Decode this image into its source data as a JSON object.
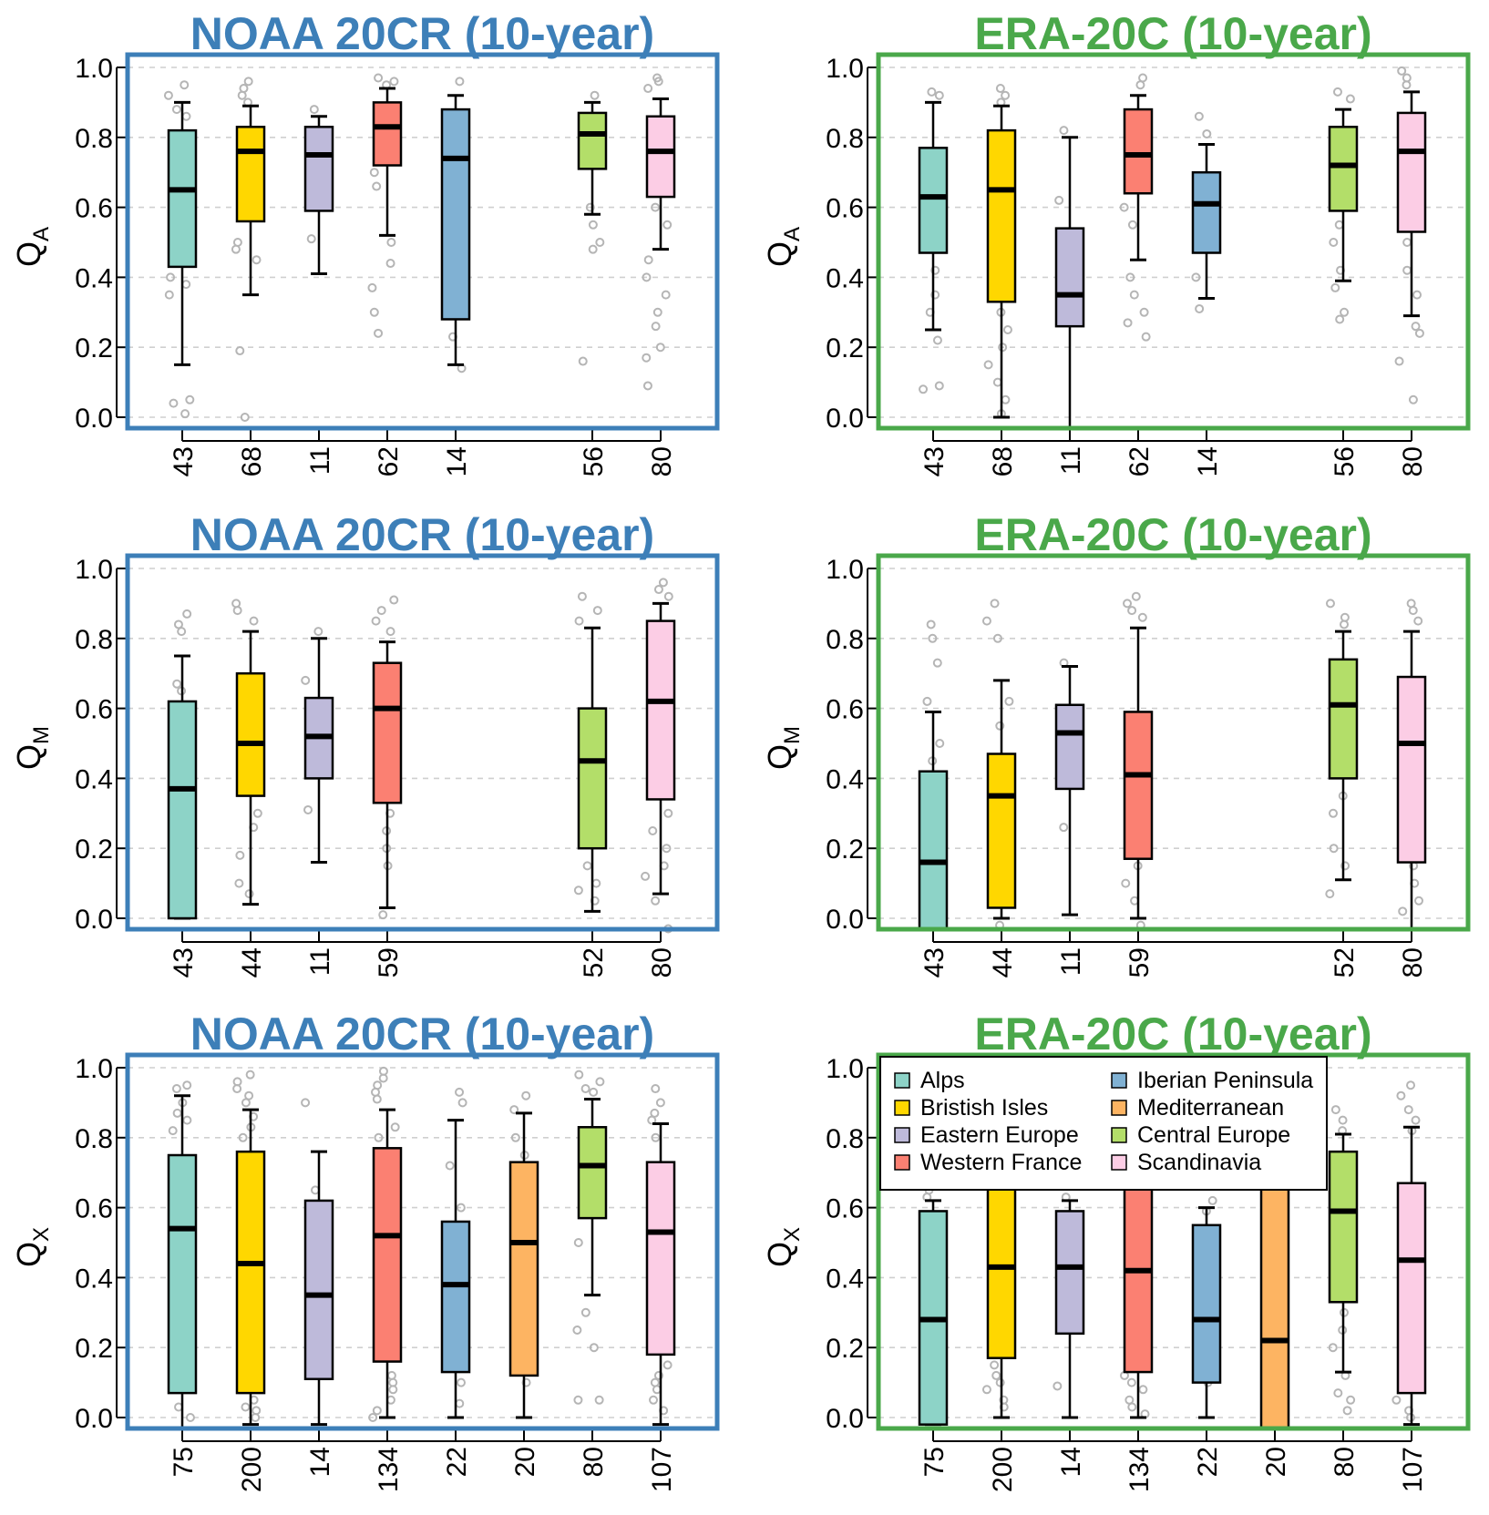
{
  "colors": {
    "noaa": "#3d7fb8",
    "era": "#4aa84a",
    "regions": {
      "Alps": "#8dd3c7",
      "Bristish Isles": "#ffd700",
      "Eastern Europe": "#bebada",
      "Western France": "#fb8072",
      "Iberian Peninsula": "#80b1d3",
      "Mediterranean": "#fdb462",
      "Central Europe": "#b3de69",
      "Scandinavia": "#fccde5"
    },
    "outlier": "#b5b5b5"
  },
  "legend": {
    "entries": [
      "Alps",
      "Bristish Isles",
      "Eastern Europe",
      "Western France",
      "Iberian Peninsula",
      "Mediterranean",
      "Central Europe",
      "Scandinavia"
    ],
    "placement": "top-left of bottom-right panel"
  },
  "chart_data": [
    {
      "type": "boxplot",
      "title": "NOAA 20CR (10-year)",
      "ylabel": "Q",
      "ylabel_sub": "A",
      "ylim": [
        0,
        1
      ],
      "yticks": [
        "0.0",
        "0.2",
        "0.4",
        "0.6",
        "0.8",
        "1.0"
      ],
      "grid": true,
      "series": [
        {
          "category": "43",
          "region": "Alps",
          "q1": 0.43,
          "median": 0.65,
          "q3": 0.82,
          "whisker_low": 0.15,
          "whisker_high": 0.9,
          "outliers": [
            0.95,
            0.92,
            0.88,
            0.86,
            0.4,
            0.38,
            0.35,
            0.05,
            0.04,
            0.01
          ]
        },
        {
          "category": "68",
          "region": "Bristish Isles",
          "q1": 0.56,
          "median": 0.76,
          "q3": 0.83,
          "whisker_low": 0.35,
          "whisker_high": 0.89,
          "outliers": [
            0.96,
            0.94,
            0.92,
            0.9,
            0.5,
            0.48,
            0.45,
            0.19,
            0.0
          ]
        },
        {
          "category": "11",
          "region": "Eastern Europe",
          "q1": 0.59,
          "median": 0.75,
          "q3": 0.83,
          "whisker_low": 0.41,
          "whisker_high": 0.86,
          "outliers": [
            0.88,
            0.51
          ]
        },
        {
          "category": "62",
          "region": "Western France",
          "q1": 0.72,
          "median": 0.83,
          "q3": 0.9,
          "whisker_low": 0.52,
          "whisker_high": 0.94,
          "outliers": [
            0.97,
            0.96,
            0.95,
            0.7,
            0.66,
            0.5,
            0.44,
            0.37,
            0.3,
            0.24
          ]
        },
        {
          "category": "14",
          "region": "Iberian Peninsula",
          "q1": 0.28,
          "median": 0.74,
          "q3": 0.88,
          "whisker_low": 0.15,
          "whisker_high": 0.92,
          "outliers": [
            0.96,
            0.23,
            0.14
          ]
        },
        {
          "category": "56",
          "region": "Central Europe",
          "q1": 0.71,
          "median": 0.81,
          "q3": 0.87,
          "whisker_low": 0.58,
          "whisker_high": 0.9,
          "outliers": [
            0.92,
            0.6,
            0.55,
            0.5,
            0.48,
            0.16
          ]
        },
        {
          "category": "80",
          "region": "Scandinavia",
          "q1": 0.63,
          "median": 0.76,
          "q3": 0.86,
          "whisker_low": 0.48,
          "whisker_high": 0.91,
          "outliers": [
            0.97,
            0.96,
            0.94,
            0.6,
            0.55,
            0.45,
            0.4,
            0.35,
            0.3,
            0.26,
            0.2,
            0.17,
            0.09
          ]
        }
      ]
    },
    {
      "type": "boxplot",
      "title": "ERA-20C (10-year)",
      "ylabel": "Q",
      "ylabel_sub": "A",
      "ylim": [
        0,
        1
      ],
      "yticks": [
        "0.0",
        "0.2",
        "0.4",
        "0.6",
        "0.8",
        "1.0"
      ],
      "grid": true,
      "series": [
        {
          "category": "43",
          "region": "Alps",
          "q1": 0.47,
          "median": 0.63,
          "q3": 0.77,
          "whisker_low": 0.25,
          "whisker_high": 0.9,
          "outliers": [
            0.93,
            0.92,
            0.42,
            0.35,
            0.3,
            0.22,
            0.09,
            0.08
          ]
        },
        {
          "category": "68",
          "region": "Bristish Isles",
          "q1": 0.33,
          "median": 0.65,
          "q3": 0.82,
          "whisker_low": 0.0,
          "whisker_high": 0.89,
          "outliers": [
            0.94,
            0.92,
            0.9,
            0.3,
            0.25,
            0.2,
            0.15,
            0.1,
            0.05,
            0.01
          ]
        },
        {
          "category": "11",
          "region": "Eastern Europe",
          "q1": 0.26,
          "median": 0.35,
          "q3": 0.54,
          "whisker_low": -0.03,
          "whisker_high": 0.8,
          "outliers": [
            0.82,
            0.62
          ]
        },
        {
          "category": "62",
          "region": "Western France",
          "q1": 0.64,
          "median": 0.75,
          "q3": 0.88,
          "whisker_low": 0.45,
          "whisker_high": 0.92,
          "outliers": [
            0.97,
            0.95,
            0.6,
            0.55,
            0.4,
            0.35,
            0.3,
            0.27,
            0.23
          ]
        },
        {
          "category": "14",
          "region": "Iberian Peninsula",
          "q1": 0.47,
          "median": 0.61,
          "q3": 0.7,
          "whisker_low": 0.34,
          "whisker_high": 0.78,
          "outliers": [
            0.86,
            0.81,
            0.4,
            0.31
          ]
        },
        {
          "category": "56",
          "region": "Central Europe",
          "q1": 0.59,
          "median": 0.72,
          "q3": 0.83,
          "whisker_low": 0.39,
          "whisker_high": 0.88,
          "outliers": [
            0.93,
            0.91,
            0.55,
            0.5,
            0.42,
            0.37,
            0.3,
            0.28
          ]
        },
        {
          "category": "80",
          "region": "Scandinavia",
          "q1": 0.53,
          "median": 0.76,
          "q3": 0.87,
          "whisker_low": 0.29,
          "whisker_high": 0.93,
          "outliers": [
            0.99,
            0.97,
            0.95,
            0.5,
            0.42,
            0.35,
            0.26,
            0.24,
            0.16,
            0.05
          ]
        }
      ]
    },
    {
      "type": "boxplot",
      "title": "NOAA 20CR (10-year)",
      "ylabel": "Q",
      "ylabel_sub": "M",
      "ylim": [
        0,
        1
      ],
      "yticks": [
        "0.0",
        "0.2",
        "0.4",
        "0.6",
        "0.8",
        "1.0"
      ],
      "grid": true,
      "series": [
        {
          "category": "43",
          "region": "Alps",
          "q1": 0.0,
          "median": 0.37,
          "q3": 0.62,
          "whisker_low": 0.0,
          "whisker_high": 0.75,
          "outliers": [
            0.87,
            0.84,
            0.82,
            0.67,
            0.65
          ]
        },
        {
          "category": "44",
          "region": "Bristish Isles",
          "q1": 0.35,
          "median": 0.5,
          "q3": 0.7,
          "whisker_low": 0.04,
          "whisker_high": 0.82,
          "outliers": [
            0.9,
            0.88,
            0.85,
            0.3,
            0.26,
            0.18,
            0.1,
            0.07
          ]
        },
        {
          "category": "11",
          "region": "Eastern Europe",
          "q1": 0.4,
          "median": 0.52,
          "q3": 0.63,
          "whisker_low": 0.16,
          "whisker_high": 0.8,
          "outliers": [
            0.82,
            0.68,
            0.31
          ]
        },
        {
          "category": "59",
          "region": "Western France",
          "q1": 0.33,
          "median": 0.6,
          "q3": 0.73,
          "whisker_low": 0.03,
          "whisker_high": 0.79,
          "outliers": [
            0.91,
            0.88,
            0.85,
            0.82,
            0.3,
            0.25,
            0.2,
            0.15,
            0.01
          ]
        },
        {
          "category": "52",
          "region": "Central Europe",
          "q1": 0.2,
          "median": 0.45,
          "q3": 0.6,
          "whisker_low": 0.02,
          "whisker_high": 0.83,
          "outliers": [
            0.92,
            0.88,
            0.85,
            0.15,
            0.1,
            0.08,
            0.05
          ]
        },
        {
          "category": "80",
          "region": "Scandinavia",
          "q1": 0.34,
          "median": 0.62,
          "q3": 0.85,
          "whisker_low": 0.07,
          "whisker_high": 0.9,
          "outliers": [
            0.96,
            0.94,
            0.92,
            0.3,
            0.25,
            0.2,
            0.15,
            0.12,
            0.05,
            -0.03
          ]
        }
      ]
    },
    {
      "type": "boxplot",
      "title": "ERA-20C (10-year)",
      "ylabel": "Q",
      "ylabel_sub": "M",
      "ylim": [
        0,
        1
      ],
      "yticks": [
        "0.0",
        "0.2",
        "0.4",
        "0.6",
        "0.8",
        "1.0"
      ],
      "grid": true,
      "series": [
        {
          "category": "43",
          "region": "Alps",
          "q1": -0.03,
          "median": 0.16,
          "q3": 0.42,
          "whisker_low": -0.03,
          "whisker_high": 0.59,
          "outliers": [
            0.84,
            0.8,
            0.73,
            0.62,
            0.5,
            0.45
          ]
        },
        {
          "category": "44",
          "region": "Bristish Isles",
          "q1": 0.03,
          "median": 0.35,
          "q3": 0.47,
          "whisker_low": 0.0,
          "whisker_high": 0.68,
          "outliers": [
            0.9,
            0.85,
            0.8,
            0.62,
            0.55,
            -0.02
          ]
        },
        {
          "category": "11",
          "region": "Eastern Europe",
          "q1": 0.37,
          "median": 0.53,
          "q3": 0.61,
          "whisker_low": 0.01,
          "whisker_high": 0.72,
          "outliers": [
            0.73,
            0.26
          ]
        },
        {
          "category": "59",
          "region": "Western France",
          "q1": 0.17,
          "median": 0.41,
          "q3": 0.59,
          "whisker_low": 0.0,
          "whisker_high": 0.83,
          "outliers": [
            0.92,
            0.9,
            0.88,
            0.86,
            0.15,
            0.1,
            0.05,
            -0.02
          ]
        },
        {
          "category": "52",
          "region": "Central Europe",
          "q1": 0.4,
          "median": 0.61,
          "q3": 0.74,
          "whisker_low": 0.11,
          "whisker_high": 0.82,
          "outliers": [
            0.9,
            0.86,
            0.84,
            0.35,
            0.3,
            0.2,
            0.15,
            0.07
          ]
        },
        {
          "category": "80",
          "region": "Scandinavia",
          "q1": 0.16,
          "median": 0.5,
          "q3": 0.69,
          "whisker_low": -0.03,
          "whisker_high": 0.82,
          "outliers": [
            0.9,
            0.88,
            0.85,
            0.15,
            0.1,
            0.05,
            0.02
          ]
        }
      ]
    },
    {
      "type": "boxplot",
      "title": "NOAA 20CR (10-year)",
      "ylabel": "Q",
      "ylabel_sub": "X",
      "ylim": [
        0,
        1
      ],
      "yticks": [
        "0.0",
        "0.2",
        "0.4",
        "0.6",
        "0.8",
        "1.0"
      ],
      "grid": true,
      "series": [
        {
          "category": "75",
          "region": "Alps",
          "q1": 0.07,
          "median": 0.54,
          "q3": 0.75,
          "whisker_low": -0.03,
          "whisker_high": 0.92,
          "outliers": [
            0.95,
            0.94,
            0.9,
            0.87,
            0.85,
            0.82,
            0.03,
            0.0
          ]
        },
        {
          "category": "200",
          "region": "Bristish Isles",
          "q1": 0.07,
          "median": 0.44,
          "q3": 0.76,
          "whisker_low": -0.02,
          "whisker_high": 0.88,
          "outliers": [
            0.98,
            0.96,
            0.94,
            0.92,
            0.9,
            0.86,
            0.83,
            0.8,
            0.05,
            0.03,
            0.02,
            0.0
          ]
        },
        {
          "category": "14",
          "region": "Eastern Europe",
          "q1": 0.11,
          "median": 0.35,
          "q3": 0.62,
          "whisker_low": -0.02,
          "whisker_high": 0.76,
          "outliers": [
            0.9,
            0.65
          ]
        },
        {
          "category": "134",
          "region": "Western France",
          "q1": 0.16,
          "median": 0.52,
          "q3": 0.77,
          "whisker_low": 0.0,
          "whisker_high": 0.88,
          "outliers": [
            0.99,
            0.97,
            0.95,
            0.93,
            0.91,
            0.83,
            0.8,
            0.12,
            0.1,
            0.08,
            0.05,
            0.02,
            0.0
          ]
        },
        {
          "category": "22",
          "region": "Iberian Peninsula",
          "q1": 0.13,
          "median": 0.38,
          "q3": 0.56,
          "whisker_low": 0.0,
          "whisker_high": 0.85,
          "outliers": [
            0.93,
            0.9,
            0.72,
            0.6,
            0.1,
            0.04
          ]
        },
        {
          "category": "20",
          "region": "Mediterranean",
          "q1": 0.12,
          "median": 0.5,
          "q3": 0.73,
          "whisker_low": 0.0,
          "whisker_high": 0.87,
          "outliers": [
            0.92,
            0.88,
            0.8,
            0.75,
            0.1
          ]
        },
        {
          "category": "80",
          "region": "Central Europe",
          "q1": 0.57,
          "median": 0.72,
          "q3": 0.83,
          "whisker_low": 0.35,
          "whisker_high": 0.91,
          "outliers": [
            0.98,
            0.96,
            0.94,
            0.93,
            0.5,
            0.3,
            0.25,
            0.2,
            0.05,
            0.05
          ]
        },
        {
          "category": "107",
          "region": "Scandinavia",
          "q1": 0.18,
          "median": 0.53,
          "q3": 0.73,
          "whisker_low": -0.02,
          "whisker_high": 0.84,
          "outliers": [
            0.94,
            0.9,
            0.87,
            0.85,
            0.8,
            0.15,
            0.12,
            0.1,
            0.08,
            0.05,
            0.02
          ]
        }
      ]
    },
    {
      "type": "boxplot",
      "title": "ERA-20C (10-year)",
      "ylabel": "Q",
      "ylabel_sub": "X",
      "ylim": [
        0,
        1
      ],
      "yticks": [
        "0.0",
        "0.2",
        "0.4",
        "0.6",
        "0.8",
        "1.0"
      ],
      "grid": true,
      "series": [
        {
          "category": "75",
          "region": "Alps",
          "q1": -0.02,
          "median": 0.28,
          "q3": 0.59,
          "whisker_low": -0.02,
          "whisker_high": 0.62,
          "outliers": [
            0.65,
            0.63
          ]
        },
        {
          "category": "200",
          "region": "Bristish Isles",
          "q1": 0.17,
          "median": 0.43,
          "q3": 0.66,
          "whisker_low": 0.0,
          "whisker_high": 0.66,
          "outliers": [
            0.15,
            0.12,
            0.1,
            0.08,
            0.05,
            0.03
          ]
        },
        {
          "category": "14",
          "region": "Eastern Europe",
          "q1": 0.24,
          "median": 0.43,
          "q3": 0.59,
          "whisker_low": 0.0,
          "whisker_high": 0.62,
          "outliers": [
            0.63,
            0.09
          ]
        },
        {
          "category": "134",
          "region": "Western France",
          "q1": 0.13,
          "median": 0.42,
          "q3": 0.66,
          "whisker_low": 0.0,
          "whisker_high": 0.66,
          "outliers": [
            0.12,
            0.1,
            0.08,
            0.05,
            0.03,
            0.01
          ]
        },
        {
          "category": "22",
          "region": "Iberian Peninsula",
          "q1": 0.1,
          "median": 0.28,
          "q3": 0.55,
          "whisker_low": 0.0,
          "whisker_high": 0.6,
          "outliers": [
            0.62,
            0.59,
            0.1
          ]
        },
        {
          "category": "20",
          "region": "Mediterranean",
          "q1": -0.03,
          "median": 0.22,
          "q3": 0.66,
          "whisker_low": -0.03,
          "whisker_high": 0.66,
          "outliers": []
        },
        {
          "category": "80",
          "region": "Central Europe",
          "q1": 0.33,
          "median": 0.59,
          "q3": 0.76,
          "whisker_low": 0.13,
          "whisker_high": 0.81,
          "outliers": [
            0.88,
            0.85,
            0.82,
            0.3,
            0.25,
            0.2,
            0.12,
            0.07,
            0.05,
            0.02
          ]
        },
        {
          "category": "107",
          "region": "Scandinavia",
          "q1": 0.07,
          "median": 0.45,
          "q3": 0.67,
          "whisker_low": -0.02,
          "whisker_high": 0.83,
          "outliers": [
            0.95,
            0.92,
            0.88,
            0.85,
            0.82,
            0.65,
            0.1,
            0.05,
            0.02,
            0.0
          ]
        }
      ]
    }
  ]
}
